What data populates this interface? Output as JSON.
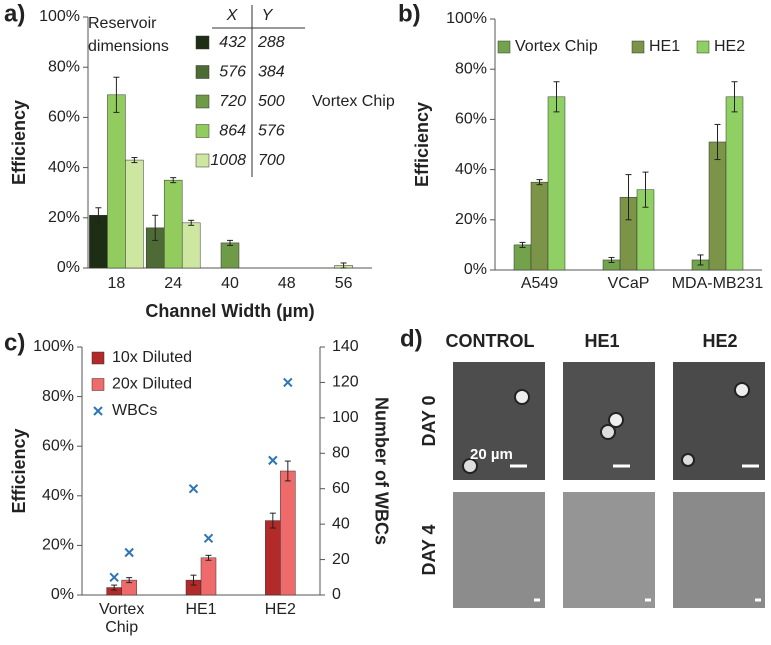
{
  "chart_data": [
    {
      "type": "bar",
      "panel_label": "a)",
      "ylabel": "Efficiency",
      "xlabel": "Channel Width (µm)",
      "categories": [
        "18",
        "24",
        "40",
        "48",
        "56"
      ],
      "ylim": [
        0,
        100
      ],
      "yticks": [
        {
          "value": 0,
          "label": "0%"
        },
        {
          "value": 20,
          "label": "20%"
        },
        {
          "value": 40,
          "label": "40%"
        },
        {
          "value": 60,
          "label": "60%"
        },
        {
          "value": 80,
          "label": "80%"
        },
        {
          "value": 100,
          "label": "100%"
        }
      ],
      "legend_title": "Reservoir dimensions",
      "legend_header": [
        "X",
        "Y"
      ],
      "series": [
        {
          "dims": [
            "432",
            "288"
          ],
          "color": "#1d2e14",
          "values": [
            21,
            null,
            null,
            null,
            null
          ],
          "errors": [
            3,
            null,
            null,
            null,
            null
          ]
        },
        {
          "dims": [
            "576",
            "384"
          ],
          "color": "#4f6b35",
          "values": [
            null,
            16,
            null,
            null,
            null
          ],
          "errors": [
            null,
            5,
            null,
            null,
            null
          ]
        },
        {
          "dims": [
            "720",
            "500"
          ],
          "note": "Vortex Chip",
          "color": "#6f9a48",
          "values": [
            null,
            null,
            10,
            null,
            null
          ],
          "errors": [
            null,
            null,
            1,
            null,
            null
          ]
        },
        {
          "dims": [
            "864",
            "576"
          ],
          "color": "#93cc5e",
          "values": [
            69,
            35,
            null,
            null,
            null
          ],
          "errors": [
            7,
            1,
            null,
            null,
            null
          ]
        },
        {
          "dims": [
            "1008",
            "700"
          ],
          "color": "#cde6a0",
          "values": [
            43,
            18,
            null,
            null,
            1
          ],
          "errors": [
            1,
            1,
            null,
            null,
            1
          ]
        }
      ]
    },
    {
      "type": "bar",
      "panel_label": "b)",
      "ylabel": "Efficiency",
      "categories": [
        "A549",
        "VCaP",
        "MDA-MB231"
      ],
      "ylim": [
        0,
        100
      ],
      "yticks": [
        {
          "value": 0,
          "label": "0%"
        },
        {
          "value": 20,
          "label": "20%"
        },
        {
          "value": 40,
          "label": "40%"
        },
        {
          "value": 60,
          "label": "60%"
        },
        {
          "value": 80,
          "label": "80%"
        },
        {
          "value": 100,
          "label": "100%"
        }
      ],
      "legend": "top",
      "series": [
        {
          "name": "Vortex Chip",
          "color": "#72a24c",
          "values": [
            10,
            4,
            4
          ],
          "errors": [
            1,
            1,
            2
          ]
        },
        {
          "name": "HE1",
          "color": "#7b9447",
          "values": [
            35,
            29,
            51
          ],
          "errors": [
            1,
            9,
            7
          ]
        },
        {
          "name": "HE2",
          "color": "#8fcf63",
          "values": [
            69,
            32,
            69
          ],
          "errors": [
            6,
            7,
            6
          ]
        }
      ]
    },
    {
      "type": "bar",
      "panel_label": "c)",
      "ylabel": "Efficiency",
      "y2label": "Number of WBCs",
      "categories": [
        "Vortex Chip",
        "HE1",
        "HE2"
      ],
      "ylim": [
        0,
        100
      ],
      "yticks": [
        {
          "value": 0,
          "label": "0%"
        },
        {
          "value": 20,
          "label": "20%"
        },
        {
          "value": 40,
          "label": "40%"
        },
        {
          "value": 60,
          "label": "60%"
        },
        {
          "value": 80,
          "label": "80%"
        },
        {
          "value": 100,
          "label": "100%"
        }
      ],
      "y2lim": [
        0,
        140
      ],
      "y2ticks": [
        0,
        20,
        40,
        60,
        80,
        100,
        120,
        140
      ],
      "legend": "top-left",
      "series": [
        {
          "name": "10x Diluted",
          "color": "#b22a2a",
          "values": [
            3,
            6,
            30
          ],
          "errors": [
            1,
            2,
            3
          ]
        },
        {
          "name": "20x Diluted",
          "color": "#ef6b6b",
          "values": [
            6,
            15,
            50
          ],
          "errors": [
            1,
            1,
            4
          ]
        },
        {
          "name": "WBCs",
          "type": "scatter",
          "marker": "x",
          "axis": "y2",
          "color": "#2e75b6",
          "values": [
            [
              10,
              24
            ],
            [
              60,
              32
            ],
            [
              76,
              120
            ]
          ]
        }
      ]
    }
  ],
  "panel_d": {
    "panel_label": "d)",
    "columns": [
      "CONTROL",
      "HE1",
      "HE2"
    ],
    "rows": [
      "DAY 0",
      "DAY 4"
    ],
    "scale_label": "20 µm"
  }
}
